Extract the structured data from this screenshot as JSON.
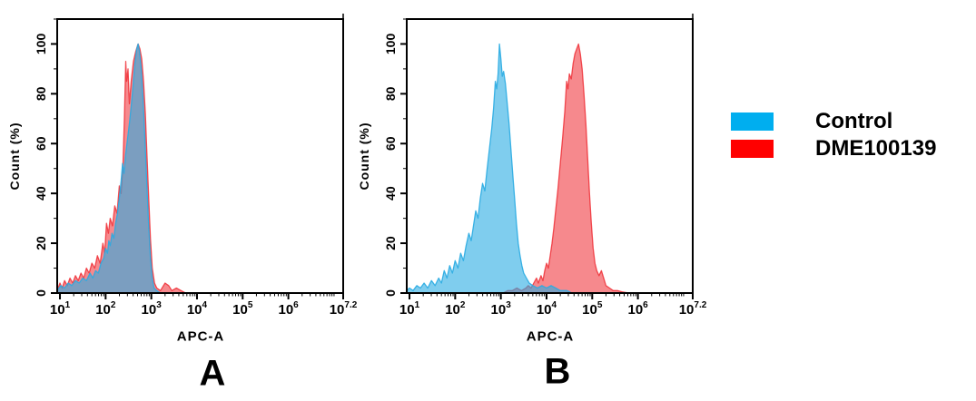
{
  "legend": {
    "items": [
      {
        "label": "Control",
        "color": "#00AEEF"
      },
      {
        "label": "DME100139",
        "color": "#FF0000"
      }
    ]
  },
  "chart_data": [
    {
      "type": "area",
      "panel_label": "A",
      "xlabel": "APC-A",
      "ylabel": "Count  (%)",
      "x_scale": "log10",
      "x_tick_base": "10",
      "x_tick_exponents": [
        "1",
        "2",
        "3",
        "4",
        "5",
        "6",
        "7.2"
      ],
      "y_tick_labels": [
        "0",
        "20",
        "40",
        "60",
        "80",
        "100"
      ],
      "y_tick_values": [
        0,
        20,
        40,
        60,
        80,
        100
      ],
      "xlim_log": [
        0.94,
        7.2
      ],
      "ylim": [
        0,
        110
      ],
      "grid": false,
      "series": [
        {
          "name": "DME100139",
          "color": "#ED1C24",
          "fill_opacity": 0.52,
          "stroke_opacity": 0.75,
          "points": [
            [
              0.94,
              1
            ],
            [
              1.0,
              4
            ],
            [
              1.05,
              2
            ],
            [
              1.1,
              5
            ],
            [
              1.16,
              3
            ],
            [
              1.22,
              6
            ],
            [
              1.28,
              4
            ],
            [
              1.34,
              7
            ],
            [
              1.4,
              5
            ],
            [
              1.46,
              8
            ],
            [
              1.52,
              6
            ],
            [
              1.58,
              10
            ],
            [
              1.64,
              8
            ],
            [
              1.7,
              12
            ],
            [
              1.76,
              10
            ],
            [
              1.82,
              15
            ],
            [
              1.88,
              12
            ],
            [
              1.94,
              20
            ],
            [
              1.98,
              16
            ],
            [
              2.02,
              28
            ],
            [
              2.06,
              24
            ],
            [
              2.1,
              30
            ],
            [
              2.15,
              27
            ],
            [
              2.2,
              35
            ],
            [
              2.25,
              32
            ],
            [
              2.3,
              43
            ],
            [
              2.34,
              40
            ],
            [
              2.38,
              52
            ],
            [
              2.41,
              70
            ],
            [
              2.44,
              93
            ],
            [
              2.46,
              85
            ],
            [
              2.49,
              90
            ],
            [
              2.52,
              76
            ],
            [
              2.56,
              85
            ],
            [
              2.61,
              93
            ],
            [
              2.66,
              97
            ],
            [
              2.71,
              100
            ],
            [
              2.75,
              98
            ],
            [
              2.79,
              94
            ],
            [
              2.83,
              85
            ],
            [
              2.87,
              72
            ],
            [
              2.9,
              58
            ],
            [
              2.94,
              40
            ],
            [
              2.98,
              22
            ],
            [
              3.02,
              10
            ],
            [
              3.07,
              4
            ],
            [
              3.12,
              2
            ],
            [
              3.2,
              1
            ],
            [
              3.3,
              4
            ],
            [
              3.38,
              3
            ],
            [
              3.45,
              1
            ],
            [
              3.55,
              2
            ],
            [
              3.65,
              1
            ],
            [
              3.75,
              0
            ]
          ]
        },
        {
          "name": "Control",
          "color": "#29ABE2",
          "fill_opacity": 0.6,
          "stroke_opacity": 0.9,
          "points": [
            [
              0.94,
              1
            ],
            [
              1.02,
              3
            ],
            [
              1.1,
              2
            ],
            [
              1.18,
              4
            ],
            [
              1.26,
              3
            ],
            [
              1.34,
              5
            ],
            [
              1.42,
              4
            ],
            [
              1.5,
              6
            ],
            [
              1.58,
              5
            ],
            [
              1.66,
              8
            ],
            [
              1.72,
              6
            ],
            [
              1.78,
              9
            ],
            [
              1.84,
              8
            ],
            [
              1.9,
              12
            ],
            [
              1.96,
              14
            ],
            [
              2.0,
              18
            ],
            [
              2.04,
              16
            ],
            [
              2.07,
              21
            ],
            [
              2.1,
              19
            ],
            [
              2.14,
              24
            ],
            [
              2.18,
              22
            ],
            [
              2.22,
              28
            ],
            [
              2.26,
              32
            ],
            [
              2.3,
              38
            ],
            [
              2.34,
              45
            ],
            [
              2.37,
              52
            ],
            [
              2.4,
              48
            ],
            [
              2.44,
              56
            ],
            [
              2.48,
              62
            ],
            [
              2.52,
              68
            ],
            [
              2.56,
              75
            ],
            [
              2.6,
              83
            ],
            [
              2.64,
              92
            ],
            [
              2.68,
              98
            ],
            [
              2.71,
              100
            ],
            [
              2.74,
              97
            ],
            [
              2.78,
              90
            ],
            [
              2.82,
              78
            ],
            [
              2.86,
              62
            ],
            [
              2.9,
              45
            ],
            [
              2.94,
              28
            ],
            [
              2.98,
              14
            ],
            [
              3.02,
              6
            ],
            [
              3.06,
              2
            ],
            [
              3.12,
              1
            ],
            [
              3.2,
              0
            ]
          ]
        }
      ]
    },
    {
      "type": "area",
      "panel_label": "B",
      "xlabel": "APC-A",
      "ylabel": "Count  (%)",
      "x_scale": "log10",
      "x_tick_base": "10",
      "x_tick_exponents": [
        "1",
        "2",
        "3",
        "4",
        "5",
        "6",
        "7.2"
      ],
      "y_tick_labels": [
        "0",
        "20",
        "40",
        "60",
        "80",
        "100"
      ],
      "y_tick_values": [
        0,
        20,
        40,
        60,
        80,
        100
      ],
      "xlim_log": [
        0.94,
        7.2
      ],
      "ylim": [
        0,
        110
      ],
      "grid": false,
      "series": [
        {
          "name": "DME100139",
          "color": "#ED1C24",
          "fill_opacity": 0.52,
          "stroke_opacity": 0.75,
          "points": [
            [
              3.05,
              0
            ],
            [
              3.15,
              1
            ],
            [
              3.25,
              1
            ],
            [
              3.35,
              2
            ],
            [
              3.45,
              1
            ],
            [
              3.55,
              2
            ],
            [
              3.6,
              3
            ],
            [
              3.66,
              2
            ],
            [
              3.72,
              4
            ],
            [
              3.78,
              6
            ],
            [
              3.82,
              4
            ],
            [
              3.88,
              7
            ],
            [
              3.92,
              5
            ],
            [
              3.96,
              9
            ],
            [
              4.0,
              12
            ],
            [
              4.04,
              10
            ],
            [
              4.08,
              15
            ],
            [
              4.12,
              20
            ],
            [
              4.16,
              26
            ],
            [
              4.2,
              33
            ],
            [
              4.25,
              42
            ],
            [
              4.3,
              52
            ],
            [
              4.35,
              62
            ],
            [
              4.4,
              73
            ],
            [
              4.44,
              85
            ],
            [
              4.47,
              82
            ],
            [
              4.5,
              88
            ],
            [
              4.54,
              86
            ],
            [
              4.58,
              92
            ],
            [
              4.62,
              96
            ],
            [
              4.66,
              98
            ],
            [
              4.7,
              100
            ],
            [
              4.74,
              96
            ],
            [
              4.78,
              90
            ],
            [
              4.82,
              80
            ],
            [
              4.86,
              68
            ],
            [
              4.9,
              54
            ],
            [
              4.94,
              40
            ],
            [
              4.98,
              28
            ],
            [
              5.02,
              18
            ],
            [
              5.06,
              12
            ],
            [
              5.1,
              9
            ],
            [
              5.15,
              7
            ],
            [
              5.2,
              9
            ],
            [
              5.25,
              6
            ],
            [
              5.3,
              3
            ],
            [
              5.38,
              2
            ],
            [
              5.46,
              1
            ],
            [
              5.55,
              1
            ],
            [
              5.65,
              0.5
            ],
            [
              5.8,
              0
            ]
          ]
        },
        {
          "name": "Control",
          "color": "#29ABE2",
          "fill_opacity": 0.6,
          "stroke_opacity": 0.9,
          "points": [
            [
              0.94,
              1
            ],
            [
              1.0,
              2
            ],
            [
              1.08,
              1
            ],
            [
              1.16,
              3
            ],
            [
              1.24,
              2
            ],
            [
              1.32,
              4
            ],
            [
              1.4,
              2
            ],
            [
              1.48,
              5
            ],
            [
              1.56,
              3
            ],
            [
              1.64,
              6
            ],
            [
              1.7,
              4
            ],
            [
              1.76,
              9
            ],
            [
              1.82,
              6
            ],
            [
              1.88,
              11
            ],
            [
              1.94,
              8
            ],
            [
              2.0,
              13
            ],
            [
              2.06,
              10
            ],
            [
              2.12,
              16
            ],
            [
              2.18,
              13
            ],
            [
              2.24,
              19
            ],
            [
              2.3,
              24
            ],
            [
              2.35,
              21
            ],
            [
              2.4,
              27
            ],
            [
              2.45,
              33
            ],
            [
              2.5,
              30
            ],
            [
              2.55,
              38
            ],
            [
              2.6,
              44
            ],
            [
              2.65,
              41
            ],
            [
              2.7,
              50
            ],
            [
              2.75,
              58
            ],
            [
              2.8,
              66
            ],
            [
              2.84,
              74
            ],
            [
              2.88,
              85
            ],
            [
              2.91,
              82
            ],
            [
              2.94,
              88
            ],
            [
              2.97,
              100
            ],
            [
              3.0,
              94
            ],
            [
              3.03,
              87
            ],
            [
              3.06,
              89
            ],
            [
              3.1,
              84
            ],
            [
              3.14,
              76
            ],
            [
              3.18,
              68
            ],
            [
              3.22,
              58
            ],
            [
              3.26,
              48
            ],
            [
              3.3,
              38
            ],
            [
              3.34,
              28
            ],
            [
              3.38,
              20
            ],
            [
              3.42,
              15
            ],
            [
              3.46,
              11
            ],
            [
              3.5,
              8
            ],
            [
              3.56,
              6
            ],
            [
              3.62,
              4
            ],
            [
              3.7,
              3
            ],
            [
              3.8,
              2
            ],
            [
              3.9,
              3
            ],
            [
              4.0,
              2
            ],
            [
              4.1,
              3
            ],
            [
              4.2,
              2
            ],
            [
              4.3,
              1
            ],
            [
              4.45,
              1
            ],
            [
              4.55,
              0
            ]
          ]
        }
      ]
    }
  ]
}
